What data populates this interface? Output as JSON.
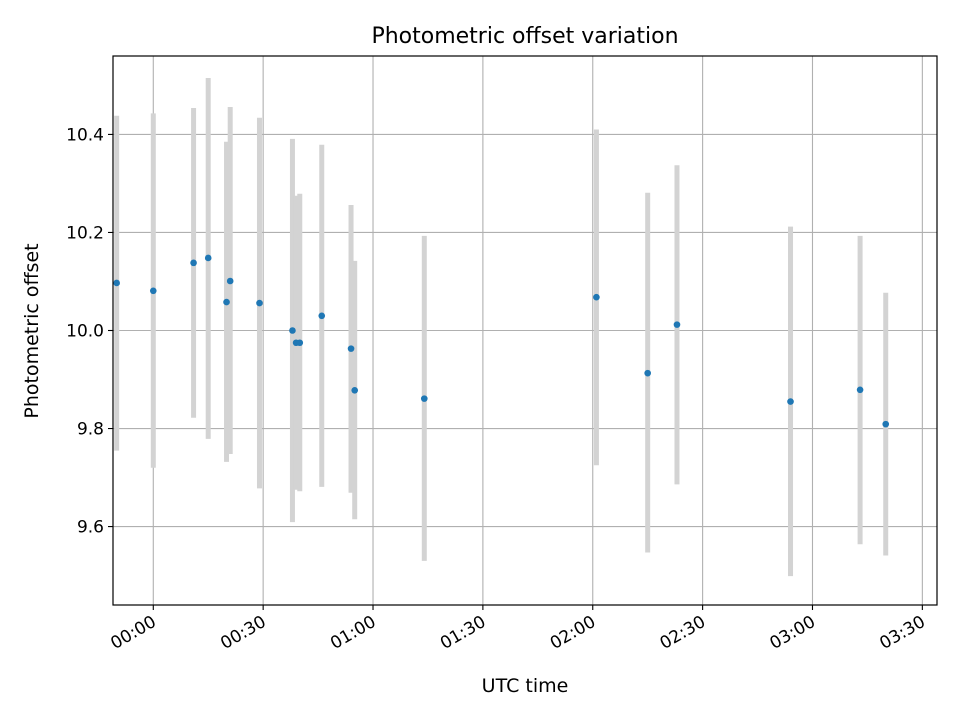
{
  "chart_data": {
    "type": "scatter",
    "title": "Photometric offset variation",
    "xlabel": "UTC time",
    "ylabel": "Photometric offset",
    "xlim": [
      "23:49",
      "03:34"
    ],
    "ylim": [
      9.44,
      10.56
    ],
    "x_ticks": [
      "00:00",
      "00:30",
      "01:00",
      "01:30",
      "02:00",
      "02:30",
      "03:00",
      "03:30"
    ],
    "y_ticks": [
      "9.6",
      "9.8",
      "10.0",
      "10.2",
      "10.4"
    ],
    "grid": true,
    "marker_color": "#1f77b4",
    "errorbar_color": "#d3d3d3",
    "points": [
      {
        "t": "23:50",
        "y": 10.097,
        "err_low": 9.755,
        "err_high": 10.438
      },
      {
        "t": "00:00",
        "y": 10.081,
        "err_low": 9.72,
        "err_high": 10.443
      },
      {
        "t": "00:11",
        "y": 10.138,
        "err_low": 9.822,
        "err_high": 10.454
      },
      {
        "t": "00:15",
        "y": 10.148,
        "err_low": 9.779,
        "err_high": 10.515
      },
      {
        "t": "00:20",
        "y": 10.058,
        "err_low": 9.732,
        "err_high": 10.385
      },
      {
        "t": "00:21",
        "y": 10.101,
        "err_low": 9.748,
        "err_high": 10.456
      },
      {
        "t": "00:29",
        "y": 10.056,
        "err_low": 9.678,
        "err_high": 10.434
      },
      {
        "t": "00:38",
        "y": 10.0,
        "err_low": 9.609,
        "err_high": 10.391
      },
      {
        "t": "00:39",
        "y": 9.975,
        "err_low": 9.675,
        "err_high": 10.275
      },
      {
        "t": "00:40",
        "y": 9.975,
        "err_low": 9.672,
        "err_high": 10.279
      },
      {
        "t": "00:46",
        "y": 10.03,
        "err_low": 9.681,
        "err_high": 10.379
      },
      {
        "t": "00:54",
        "y": 9.963,
        "err_low": 9.669,
        "err_high": 10.256
      },
      {
        "t": "00:55",
        "y": 9.878,
        "err_low": 9.615,
        "err_high": 10.142
      },
      {
        "t": "01:14",
        "y": 9.861,
        "err_low": 9.53,
        "err_high": 10.193
      },
      {
        "t": "02:01",
        "y": 10.068,
        "err_low": 9.725,
        "err_high": 10.41
      },
      {
        "t": "02:15",
        "y": 9.913,
        "err_low": 9.547,
        "err_high": 10.281
      },
      {
        "t": "02:23",
        "y": 10.012,
        "err_low": 9.686,
        "err_high": 10.337
      },
      {
        "t": "02:54",
        "y": 9.855,
        "err_low": 9.499,
        "err_high": 10.212
      },
      {
        "t": "03:13",
        "y": 9.879,
        "err_low": 9.564,
        "err_high": 10.193
      },
      {
        "t": "03:20",
        "y": 9.809,
        "err_low": 9.541,
        "err_high": 10.077
      }
    ]
  }
}
